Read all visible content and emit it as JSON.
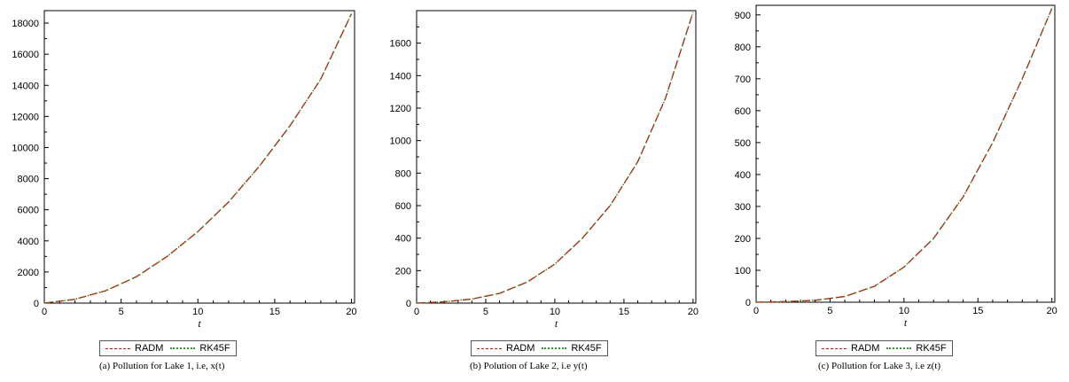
{
  "chart_data": [
    {
      "type": "line",
      "caption": "(a) Pollution for Lake 1, i.e, x(t)",
      "xlabel": "t",
      "ylabel": "",
      "xlim": [
        0,
        20.2
      ],
      "ylim": [
        0,
        18800
      ],
      "xticks": [
        0,
        5,
        10,
        15,
        20
      ],
      "yticks": [
        0,
        2000,
        4000,
        6000,
        8000,
        10000,
        12000,
        14000,
        16000,
        18000
      ],
      "grid": false,
      "legend_position": "bottom",
      "series": [
        {
          "name": "RADM",
          "style": "dash",
          "color": "#e00000",
          "x": [
            0,
            2,
            4,
            6,
            8,
            10,
            12,
            14,
            16,
            18,
            20
          ],
          "y": [
            0,
            250,
            800,
            1700,
            3000,
            4600,
            6500,
            8800,
            11400,
            14400,
            18600
          ]
        },
        {
          "name": "RK45F",
          "style": "dot",
          "color": "#2a9a2a",
          "x": [
            0,
            2,
            4,
            6,
            8,
            10,
            12,
            14,
            16,
            18,
            20
          ],
          "y": [
            0,
            250,
            800,
            1700,
            3000,
            4600,
            6500,
            8800,
            11400,
            14400,
            18600
          ]
        }
      ]
    },
    {
      "type": "line",
      "caption": "(b) Polution of Lake 2, i.e y(t)",
      "xlabel": "t",
      "ylabel": "",
      "xlim": [
        0,
        20.2
      ],
      "ylim": [
        0,
        1800
      ],
      "xticks": [
        0,
        5,
        10,
        15,
        20
      ],
      "yticks": [
        0,
        200,
        400,
        600,
        800,
        1000,
        1200,
        1400,
        1600
      ],
      "grid": false,
      "legend_position": "bottom",
      "series": [
        {
          "name": "RADM",
          "style": "dash",
          "color": "#e00000",
          "x": [
            0,
            2,
            4,
            6,
            8,
            10,
            12,
            14,
            16,
            18,
            20
          ],
          "y": [
            0,
            8,
            25,
            60,
            130,
            240,
            400,
            600,
            870,
            1260,
            1790
          ]
        },
        {
          "name": "RK45F",
          "style": "dot",
          "color": "#2a9a2a",
          "x": [
            0,
            2,
            4,
            6,
            8,
            10,
            12,
            14,
            16,
            18,
            20
          ],
          "y": [
            0,
            8,
            25,
            60,
            130,
            240,
            400,
            600,
            870,
            1260,
            1790
          ]
        }
      ]
    },
    {
      "type": "line",
      "caption": "(c) Pollution for Lake 3, i.e z(t)",
      "xlabel": "t",
      "ylabel": "",
      "xlim": [
        0,
        20.2
      ],
      "ylim": [
        0,
        930
      ],
      "xticks": [
        0,
        5,
        10,
        15,
        20
      ],
      "yticks": [
        0,
        100,
        200,
        300,
        400,
        500,
        600,
        700,
        800,
        900
      ],
      "grid": false,
      "legend_position": "bottom",
      "series": [
        {
          "name": "RADM",
          "style": "dash",
          "color": "#e00000",
          "x": [
            0,
            2,
            4,
            6,
            8,
            10,
            12,
            14,
            16,
            18,
            20
          ],
          "y": [
            0,
            2,
            6,
            18,
            50,
            110,
            200,
            330,
            500,
            700,
            920
          ]
        },
        {
          "name": "RK45F",
          "style": "dot",
          "color": "#2a9a2a",
          "x": [
            0,
            2,
            4,
            6,
            8,
            10,
            12,
            14,
            16,
            18,
            20
          ],
          "y": [
            0,
            2,
            6,
            18,
            50,
            110,
            200,
            330,
            500,
            700,
            920
          ]
        }
      ]
    }
  ]
}
